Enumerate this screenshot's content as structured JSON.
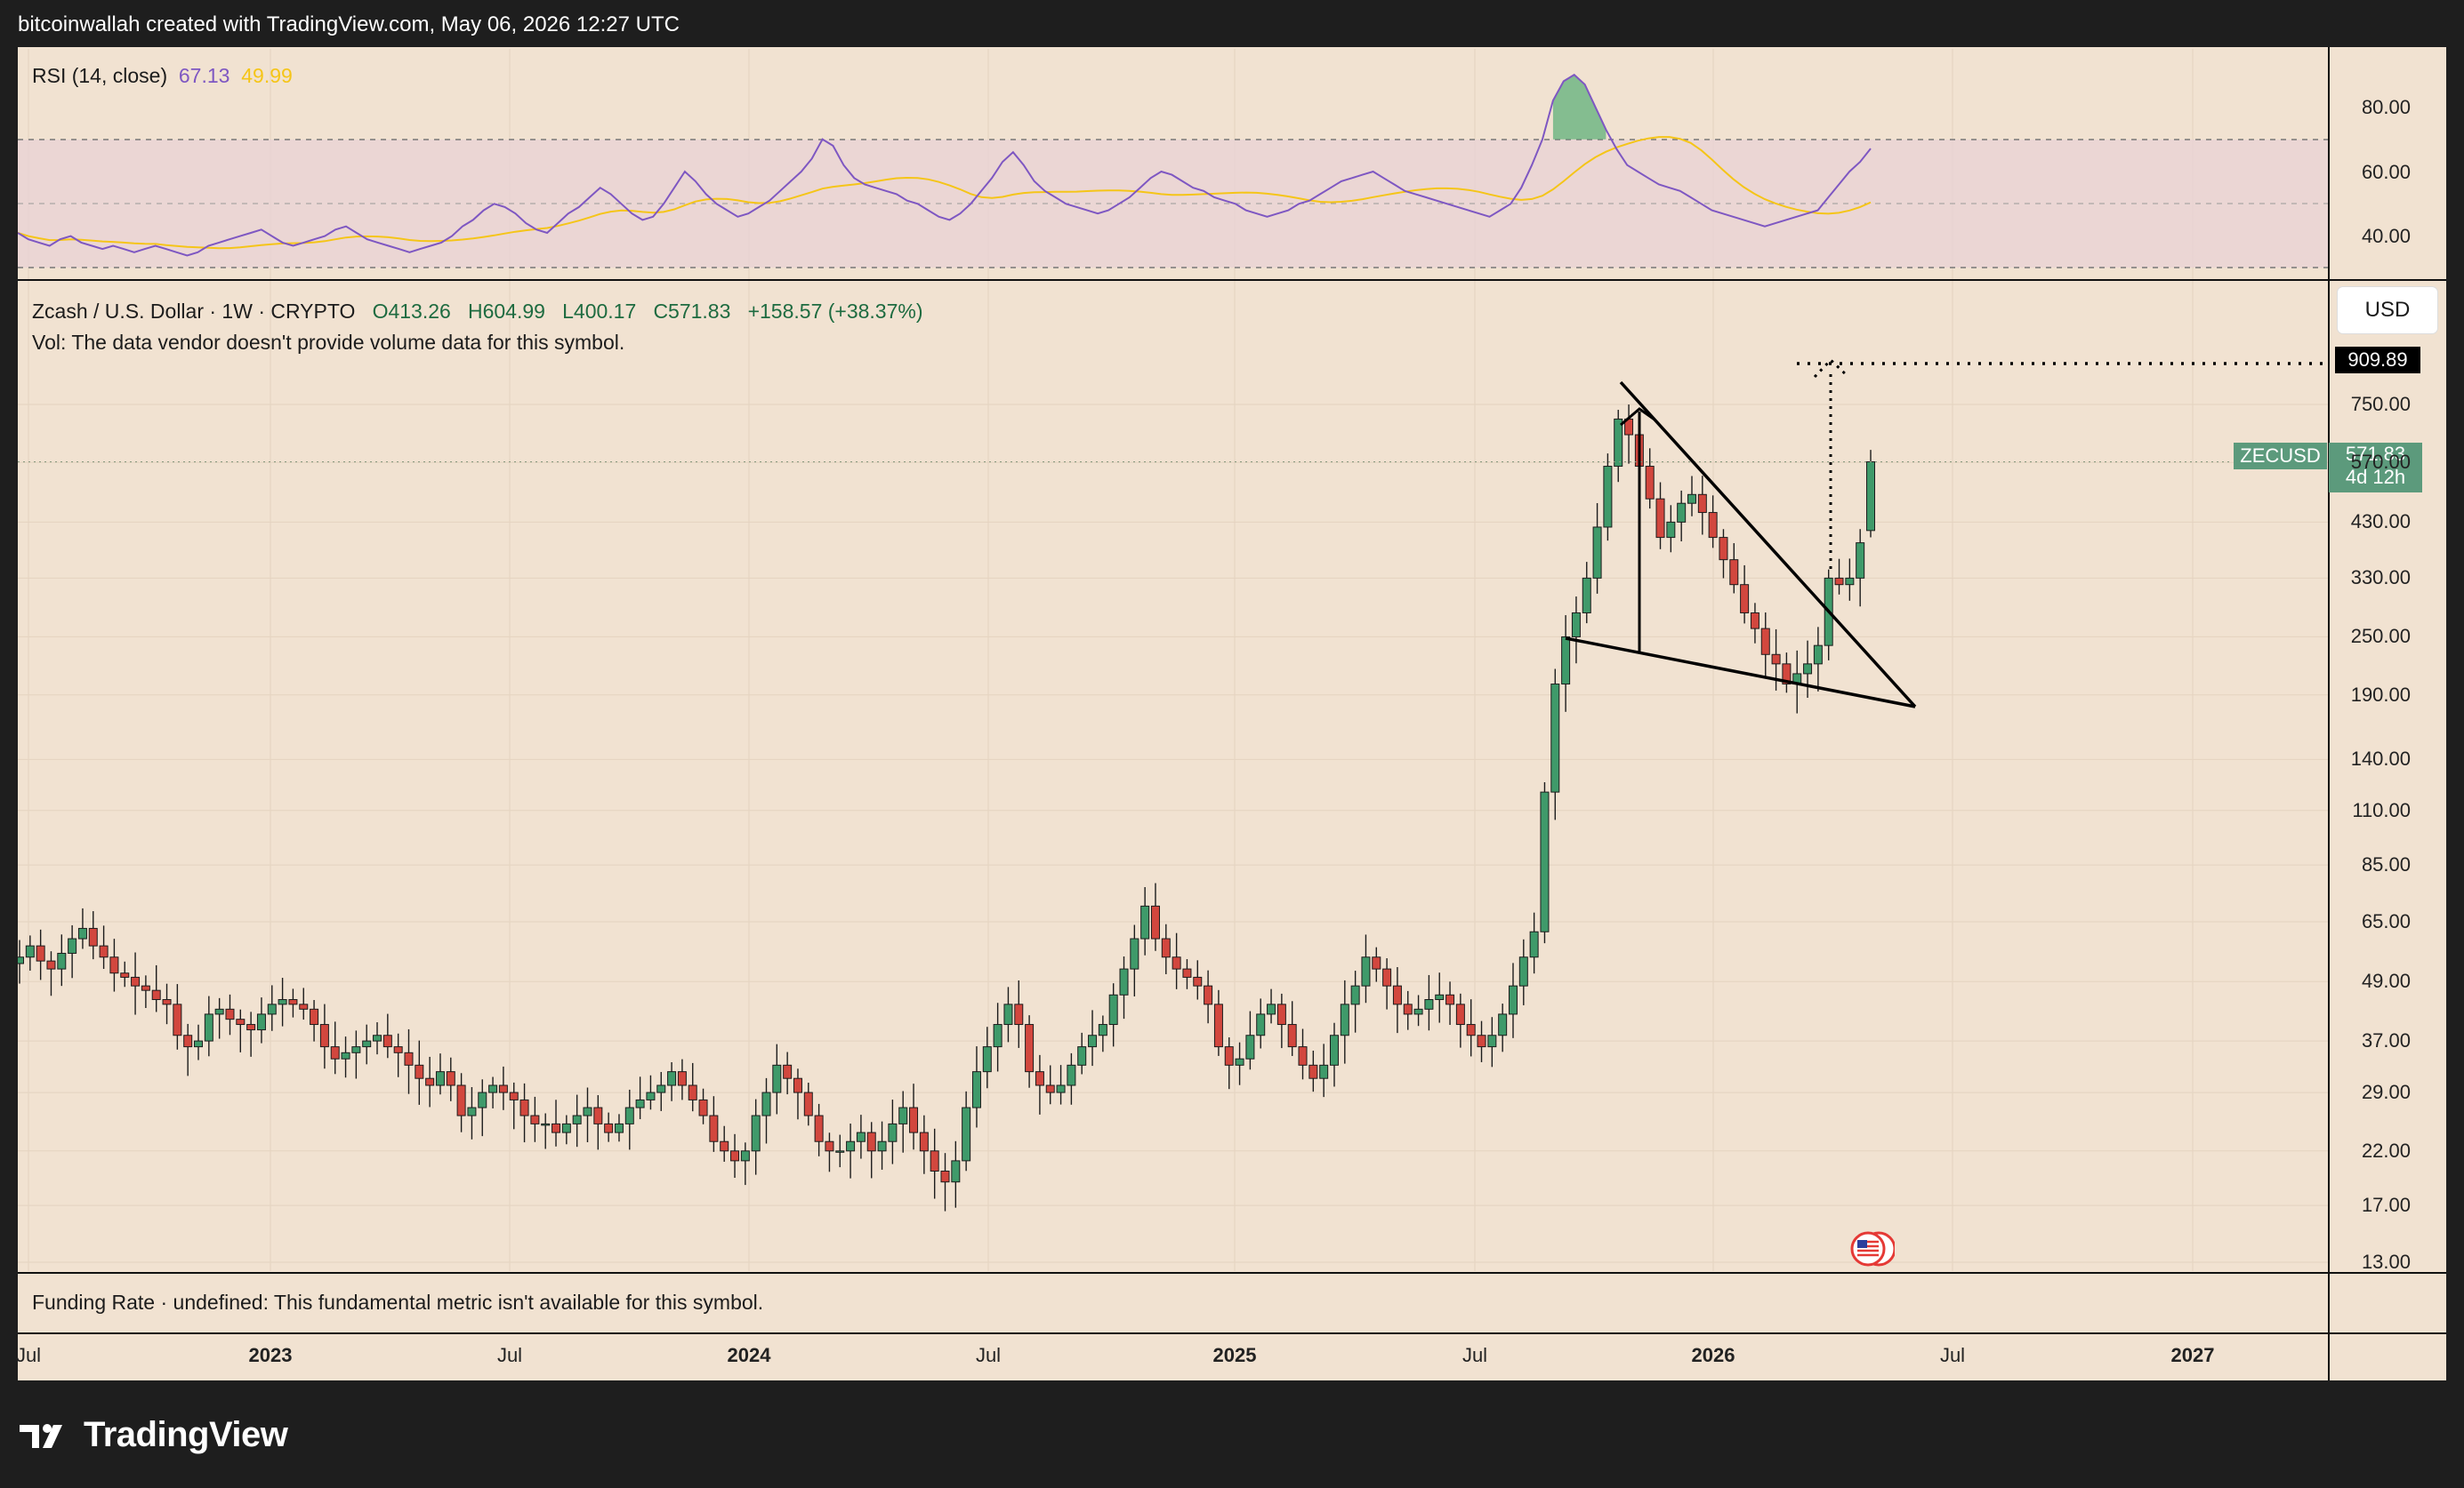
{
  "header": {
    "title": "bitcoinwallah created with TradingView.com, May 06, 2026 12:27 UTC"
  },
  "rsi": {
    "label": "RSI (14, close)",
    "value": "67.13",
    "ma_value": "49.99",
    "levels": [
      "80.00",
      "60.00",
      "40.00"
    ],
    "colors": {
      "rsi": "#7e57c2",
      "ma": "#f5c518",
      "band": "#e8d2d6"
    }
  },
  "main": {
    "symbol_line": "Zcash / U.S. Dollar · 1W · CRYPTO",
    "ohlc": {
      "o": "O413.26",
      "h": "H604.99",
      "l": "L400.17",
      "c": "C571.83",
      "chg": "+158.57 (+38.37%)"
    },
    "vol_note": "Vol: The data vendor doesn't provide volume data for this symbol.",
    "currency": "USD",
    "target_price": "909.89",
    "ticker": {
      "symbol": "ZECUSD",
      "price": "571.83",
      "countdown": "4d 12h"
    },
    "colors": {
      "up": "#3f9a6a",
      "down": "#d2473e",
      "bg": "#f1e2d1"
    }
  },
  "funding": {
    "text": "Funding Rate · undefined: This fundamental metric isn't available for this symbol."
  },
  "brand": {
    "name": "TradingView"
  },
  "chart_data": {
    "type": "candlestick",
    "title": "Zcash / U.S. Dollar · 1W · CRYPTO",
    "y_scale": "log",
    "ylim": [
      12,
      1000
    ],
    "yticks": [
      "750.00",
      "570.00",
      "430.00",
      "330.00",
      "250.00",
      "190.00",
      "140.00",
      "110.00",
      "85.00",
      "65.00",
      "49.00",
      "37.00",
      "29.00",
      "22.00",
      "17.00",
      "13.00"
    ],
    "xticks": [
      "Jul",
      "2023",
      "Jul",
      "2024",
      "Jul",
      "2025",
      "Jul",
      "2026",
      "Jul",
      "2027"
    ],
    "xrange": [
      "2022-06",
      "2027-04"
    ],
    "approx_weekly_close": [
      55,
      58,
      54,
      52,
      56,
      60,
      63,
      58,
      55,
      51,
      50,
      48,
      47,
      45,
      44,
      38,
      36,
      37,
      42,
      43,
      41,
      40,
      39,
      42,
      44,
      45,
      44,
      43,
      40,
      36,
      34,
      35,
      36,
      37,
      38,
      36,
      35,
      33,
      31,
      30,
      32,
      30,
      26,
      27,
      29,
      30,
      29,
      28,
      26,
      25,
      25,
      24,
      25,
      26,
      27,
      25,
      24,
      25,
      27,
      28,
      29,
      30,
      32,
      30,
      28,
      26,
      23,
      22,
      21,
      22,
      26,
      29,
      33,
      31,
      29,
      26,
      23,
      22,
      22,
      23,
      24,
      22,
      23,
      25,
      27,
      24,
      22,
      20,
      19,
      21,
      27,
      32,
      36,
      40,
      44,
      40,
      32,
      30,
      29,
      30,
      33,
      36,
      38,
      40,
      46,
      52,
      60,
      70,
      60,
      55,
      52,
      50,
      48,
      44,
      36,
      33,
      34,
      38,
      42,
      44,
      40,
      36,
      33,
      31,
      33,
      38,
      44,
      48,
      55,
      52,
      48,
      44,
      42,
      43,
      45,
      46,
      44,
      40,
      38,
      36,
      38,
      42,
      48,
      55,
      62,
      120,
      200,
      250,
      280,
      330,
      420,
      560,
      700,
      650,
      560,
      480,
      400,
      430,
      470,
      490,
      450,
      400,
      360,
      320,
      280,
      260,
      230,
      220,
      200,
      210,
      220,
      240,
      330,
      320,
      330,
      390,
      571.83
    ],
    "annotations": [
      {
        "type": "falling-wedge",
        "label": ""
      },
      {
        "type": "target",
        "value": 909.89
      }
    ],
    "rsi_series_approx": [
      41,
      39,
      38,
      37,
      39,
      40,
      38,
      37,
      36,
      37,
      36,
      35,
      36,
      37,
      36,
      35,
      34,
      35,
      37,
      38,
      39,
      40,
      41,
      42,
      40,
      38,
      37,
      38,
      39,
      40,
      42,
      43,
      41,
      39,
      38,
      37,
      36,
      35,
      36,
      37,
      38,
      40,
      43,
      45,
      48,
      50,
      49,
      47,
      44,
      42,
      41,
      44,
      47,
      49,
      52,
      55,
      53,
      50,
      47,
      45,
      46,
      50,
      55,
      60,
      57,
      53,
      50,
      48,
      46,
      47,
      49,
      51,
      54,
      57,
      60,
      64,
      70,
      68,
      62,
      58,
      56,
      55,
      54,
      53,
      51,
      50,
      48,
      46,
      45,
      47,
      50,
      54,
      58,
      63,
      66,
      62,
      57,
      54,
      52,
      50,
      49,
      48,
      47,
      48,
      50,
      52,
      55,
      58,
      60,
      59,
      57,
      55,
      54,
      52,
      51,
      50,
      48,
      47,
      46,
      47,
      48,
      50,
      51,
      53,
      55,
      57,
      58,
      59,
      60,
      58,
      56,
      54,
      53,
      52,
      51,
      50,
      49,
      48,
      47,
      46,
      48,
      50,
      55,
      62,
      70,
      82,
      88,
      90,
      87,
      80,
      73,
      67,
      62,
      60,
      58,
      56,
      55,
      54,
      52,
      50,
      48,
      47,
      46,
      45,
      44,
      43,
      44,
      45,
      46,
      47,
      48,
      52,
      56,
      60,
      63,
      67.13
    ]
  }
}
